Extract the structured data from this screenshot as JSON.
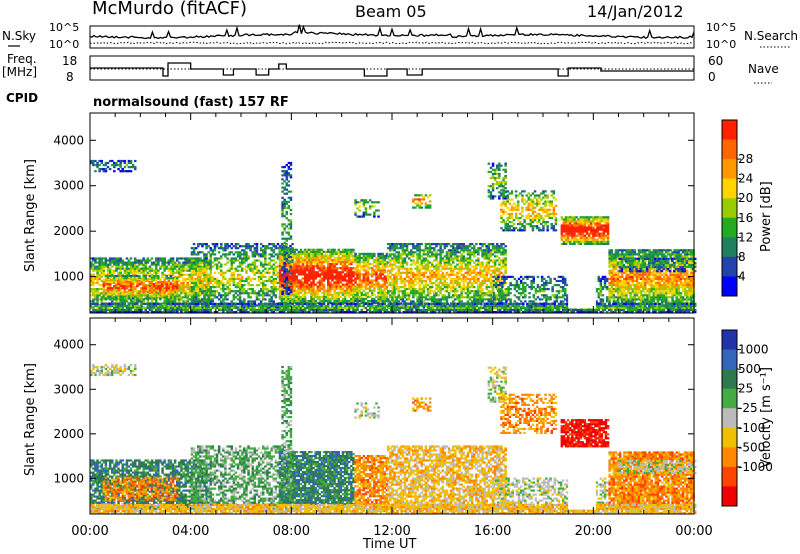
{
  "header": {
    "station": "McMurdo (fitACF)",
    "beam": "Beam 05",
    "date": "14/Jan/2012"
  },
  "noise_panel": {
    "left_label": "N.Sky",
    "right_label": "N.Search",
    "left_ticks": [
      "10^5",
      "10^0"
    ],
    "right_ticks": [
      "10^5",
      "10^0"
    ]
  },
  "freq_panel": {
    "left_label_1": "Freq.",
    "left_label_2": "[MHz]",
    "right_label": "Nave",
    "left_ticks": [
      "18",
      "8"
    ],
    "right_ticks": [
      "60",
      "0"
    ]
  },
  "cpid": {
    "label": "CPID",
    "program": "normalsound (fast) 157 RF"
  },
  "chart_data": [
    {
      "type": "heatmap",
      "name": "power",
      "ylabel": "Slant Range [km]",
      "xlabel": "",
      "y_ticks": [
        "1000",
        "2000",
        "3000",
        "4000"
      ],
      "ylim": [
        200,
        4600
      ],
      "xlim": [
        0,
        24
      ],
      "colorbar": {
        "label": "Power [dB]",
        "ticks": [
          "4",
          "8",
          "12",
          "16",
          "20",
          "24",
          "28"
        ],
        "colors": [
          "#0000ff",
          "#2244aa",
          "#1f8060",
          "#22aa22",
          "#99cc00",
          "#ffd400",
          "#ff9900",
          "#ff6600",
          "#ff2200"
        ]
      }
    },
    {
      "type": "heatmap",
      "name": "velocity",
      "ylabel": "Slant Range [km]",
      "xlabel": "Time UT",
      "x_ticks": [
        "00:00",
        "04:00",
        "08:00",
        "12:00",
        "16:00",
        "20:00",
        "00:00"
      ],
      "y_ticks": [
        "1000",
        "2000",
        "3000",
        "4000"
      ],
      "ylim": [
        200,
        4600
      ],
      "xlim": [
        0,
        24
      ],
      "colorbar": {
        "label": "Velocity [m s⁻¹]",
        "ticks": [
          "1000",
          "500",
          "25",
          "-25",
          "-100",
          "-500",
          "-1000"
        ],
        "colors": [
          "#2233aa",
          "#3366bb",
          "#2e7a4e",
          "#44aa44",
          "#bbbbbb",
          "#f0c000",
          "#ff8800",
          "#ff4400",
          "#ee0000"
        ]
      }
    }
  ]
}
